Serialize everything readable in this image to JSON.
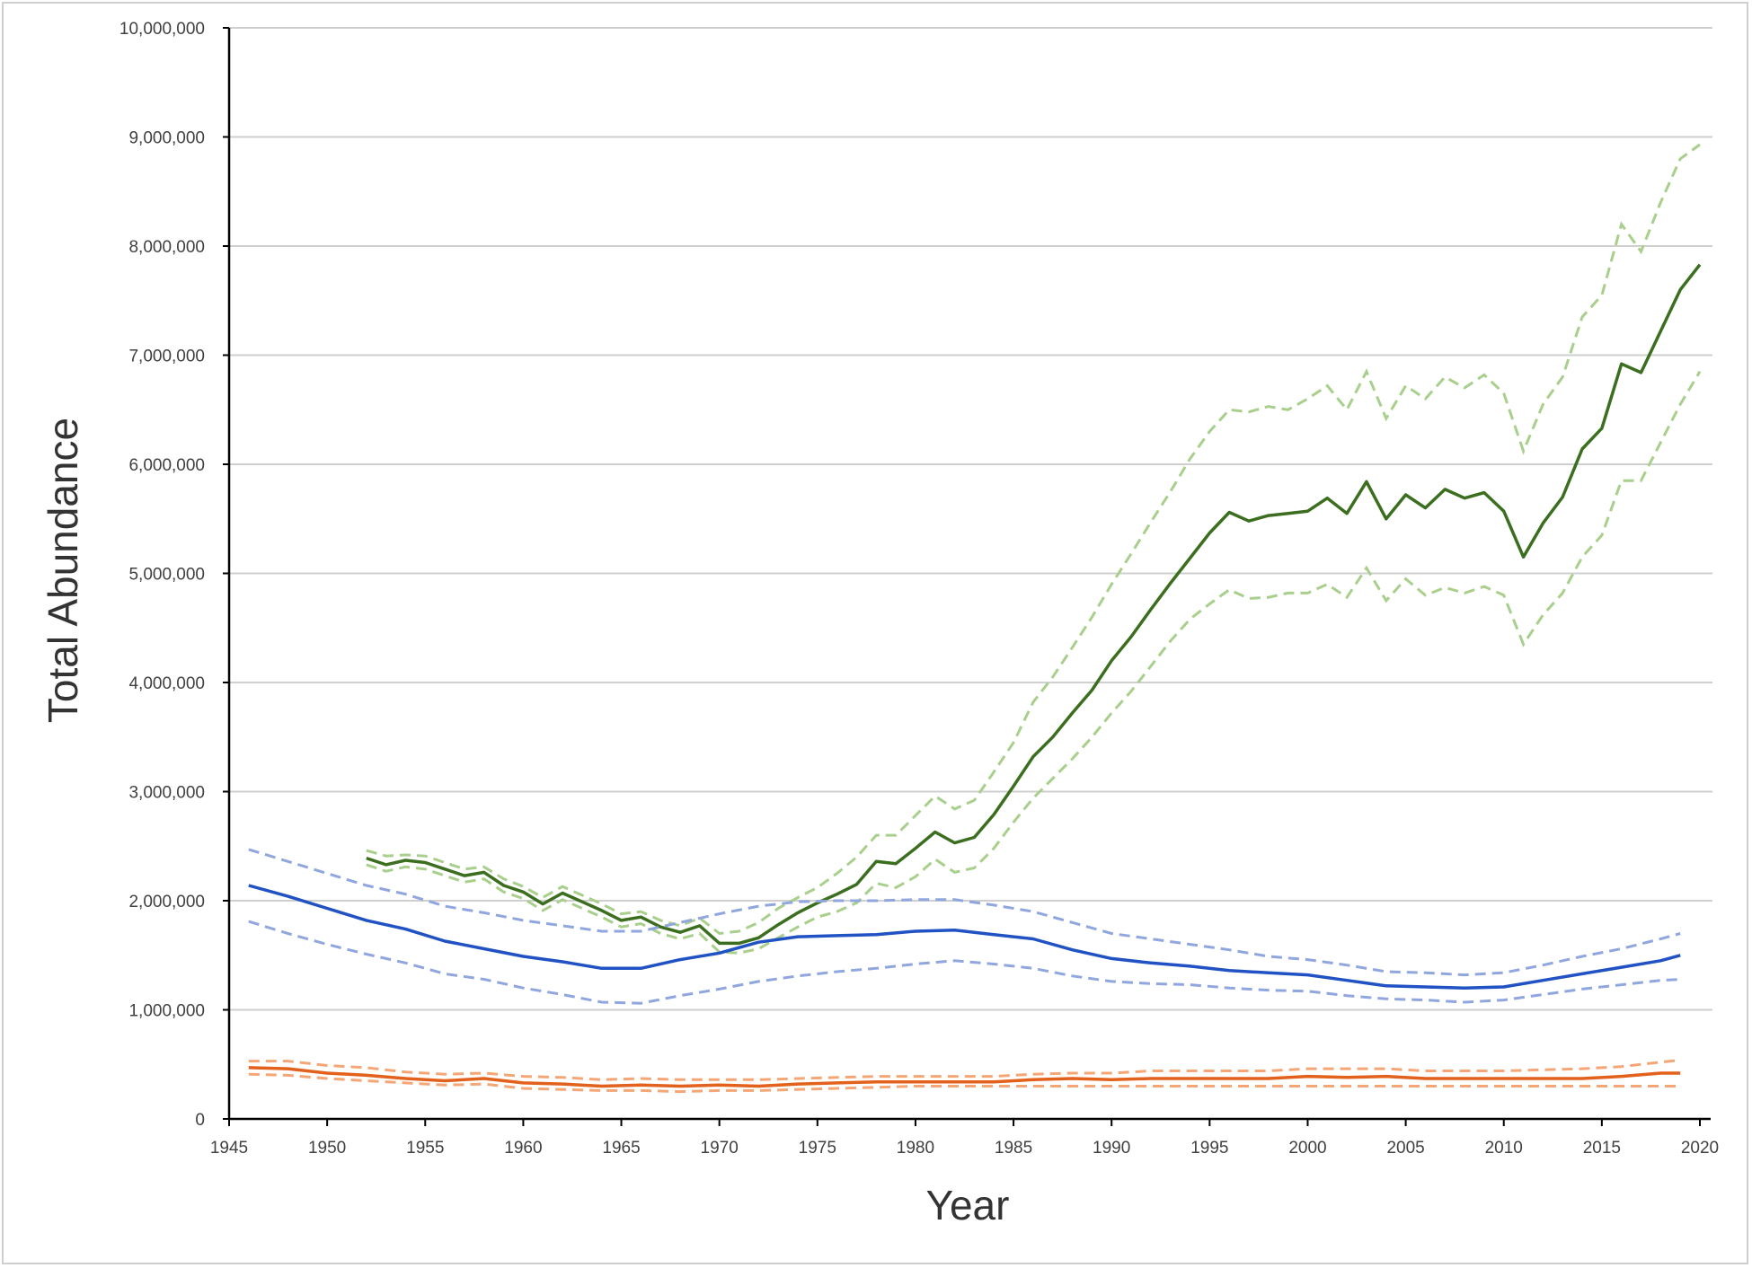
{
  "chart_data": {
    "type": "line",
    "title": "",
    "xlabel": "Year",
    "ylabel": "Total Abundance",
    "xlim": [
      1945,
      2020
    ],
    "ylim": [
      0,
      10000000
    ],
    "x_ticks": [
      "1945",
      "1950",
      "1955",
      "1960",
      "1965",
      "1970",
      "1975",
      "1980",
      "1985",
      "1990",
      "1995",
      "2000",
      "2005",
      "2010",
      "2015",
      "2020"
    ],
    "y_ticks": [
      "0",
      "1,000,000",
      "2,000,000",
      "3,000,000",
      "4,000,000",
      "5,000,000",
      "6,000,000",
      "7,000,000",
      "8,000,000",
      "9,000,000",
      "10,000,000"
    ],
    "grid": true,
    "legend": "none",
    "unit_scale": 1000000,
    "series": [
      {
        "name": "green",
        "color": "#3b6e1f",
        "ci_color": "#a8cf8c",
        "x_start": 1952,
        "x_step": 1,
        "values": [
          2.39,
          2.33,
          2.37,
          2.35,
          2.29,
          2.23,
          2.26,
          2.14,
          2.08,
          1.97,
          2.07,
          1.99,
          1.91,
          1.82,
          1.85,
          1.76,
          1.71,
          1.77,
          1.61,
          1.61,
          1.66,
          1.78,
          1.89,
          1.98,
          2.06,
          2.15,
          2.36,
          2.34,
          2.48,
          2.63,
          2.53,
          2.58,
          2.79,
          3.05,
          3.32,
          3.5,
          3.72,
          3.93,
          4.2,
          4.42,
          4.67,
          4.91,
          5.14,
          5.37,
          5.56,
          5.48,
          5.53,
          5.55,
          5.57,
          5.69,
          5.55,
          5.84,
          5.5,
          5.72,
          5.6,
          5.77,
          5.69,
          5.74,
          5.57,
          5.15,
          5.46,
          5.7,
          6.14,
          6.33,
          6.92,
          6.84,
          7.22,
          7.6,
          7.83
        ],
        "upper": [
          2.46,
          2.41,
          2.42,
          2.41,
          2.35,
          2.29,
          2.31,
          2.2,
          2.13,
          2.03,
          2.13,
          2.05,
          1.97,
          1.88,
          1.9,
          1.82,
          1.77,
          1.84,
          1.7,
          1.72,
          1.8,
          1.93,
          2.03,
          2.12,
          2.25,
          2.4,
          2.6,
          2.6,
          2.78,
          2.96,
          2.84,
          2.92,
          3.18,
          3.45,
          3.82,
          4.05,
          4.32,
          4.6,
          4.9,
          5.18,
          5.47,
          5.75,
          6.05,
          6.3,
          6.5,
          6.48,
          6.53,
          6.5,
          6.6,
          6.72,
          6.5,
          6.85,
          6.42,
          6.72,
          6.6,
          6.8,
          6.7,
          6.82,
          6.65,
          6.12,
          6.55,
          6.8,
          7.35,
          7.55,
          8.2,
          7.95,
          8.4,
          8.8,
          8.93
        ],
        "lower": [
          2.33,
          2.27,
          2.31,
          2.29,
          2.23,
          2.17,
          2.2,
          2.08,
          2.02,
          1.91,
          2.01,
          1.93,
          1.85,
          1.76,
          1.79,
          1.7,
          1.65,
          1.7,
          1.53,
          1.52,
          1.56,
          1.66,
          1.76,
          1.85,
          1.9,
          1.98,
          2.16,
          2.12,
          2.22,
          2.38,
          2.26,
          2.3,
          2.48,
          2.72,
          2.94,
          3.12,
          3.3,
          3.5,
          3.72,
          3.92,
          4.15,
          4.38,
          4.58,
          4.72,
          4.85,
          4.77,
          4.78,
          4.82,
          4.82,
          4.9,
          4.78,
          5.05,
          4.75,
          4.95,
          4.8,
          4.87,
          4.82,
          4.88,
          4.8,
          4.35,
          4.62,
          4.82,
          5.15,
          5.35,
          5.85,
          5.85,
          6.2,
          6.55,
          6.85
        ]
      },
      {
        "name": "blue",
        "color": "#2152c4",
        "ci_color": "#8fa6de",
        "x": [
          1946,
          1948,
          1950,
          1952,
          1954,
          1956,
          1958,
          1960,
          1962,
          1964,
          1966,
          1968,
          1970,
          1972,
          1974,
          1976,
          1978,
          1980,
          1982,
          1984,
          1986,
          1988,
          1990,
          1992,
          1994,
          1996,
          1998,
          2000,
          2002,
          2004,
          2006,
          2008,
          2010,
          2012,
          2014,
          2016,
          2018,
          2019
        ],
        "values": [
          2.14,
          2.04,
          1.93,
          1.82,
          1.74,
          1.63,
          1.56,
          1.49,
          1.44,
          1.38,
          1.38,
          1.46,
          1.52,
          1.62,
          1.67,
          1.68,
          1.69,
          1.72,
          1.73,
          1.69,
          1.65,
          1.55,
          1.47,
          1.43,
          1.4,
          1.36,
          1.34,
          1.32,
          1.27,
          1.22,
          1.21,
          1.2,
          1.21,
          1.27,
          1.33,
          1.39,
          1.45,
          1.5
        ],
        "upper": [
          2.47,
          2.36,
          2.25,
          2.14,
          2.06,
          1.95,
          1.89,
          1.82,
          1.77,
          1.72,
          1.72,
          1.8,
          1.88,
          1.95,
          1.99,
          2.0,
          2.0,
          2.01,
          2.01,
          1.96,
          1.9,
          1.8,
          1.7,
          1.65,
          1.6,
          1.55,
          1.49,
          1.46,
          1.41,
          1.35,
          1.34,
          1.32,
          1.34,
          1.41,
          1.49,
          1.56,
          1.65,
          1.7
        ],
        "lower": [
          1.81,
          1.7,
          1.6,
          1.51,
          1.43,
          1.33,
          1.28,
          1.2,
          1.14,
          1.07,
          1.06,
          1.13,
          1.19,
          1.26,
          1.31,
          1.35,
          1.38,
          1.42,
          1.45,
          1.42,
          1.38,
          1.31,
          1.26,
          1.24,
          1.23,
          1.2,
          1.18,
          1.17,
          1.13,
          1.1,
          1.09,
          1.07,
          1.09,
          1.14,
          1.19,
          1.23,
          1.27,
          1.28
        ]
      },
      {
        "name": "orange",
        "color": "#e2611c",
        "ci_color": "#f4a676",
        "x": [
          1946,
          1948,
          1950,
          1952,
          1954,
          1956,
          1958,
          1960,
          1962,
          1964,
          1966,
          1968,
          1970,
          1972,
          1974,
          1976,
          1978,
          1980,
          1982,
          1984,
          1986,
          1988,
          1990,
          1992,
          1994,
          1996,
          1998,
          2000,
          2002,
          2004,
          2006,
          2008,
          2010,
          2012,
          2014,
          2016,
          2018,
          2019
        ],
        "values": [
          0.47,
          0.46,
          0.42,
          0.4,
          0.37,
          0.35,
          0.37,
          0.33,
          0.32,
          0.3,
          0.31,
          0.3,
          0.31,
          0.3,
          0.32,
          0.33,
          0.34,
          0.34,
          0.34,
          0.34,
          0.36,
          0.37,
          0.36,
          0.37,
          0.37,
          0.37,
          0.37,
          0.39,
          0.38,
          0.39,
          0.37,
          0.37,
          0.37,
          0.37,
          0.37,
          0.39,
          0.42,
          0.42
        ],
        "upper": [
          0.53,
          0.53,
          0.49,
          0.47,
          0.43,
          0.41,
          0.42,
          0.39,
          0.38,
          0.36,
          0.37,
          0.36,
          0.36,
          0.36,
          0.37,
          0.38,
          0.39,
          0.39,
          0.39,
          0.39,
          0.41,
          0.42,
          0.42,
          0.44,
          0.44,
          0.44,
          0.44,
          0.46,
          0.46,
          0.46,
          0.44,
          0.44,
          0.44,
          0.45,
          0.46,
          0.48,
          0.52,
          0.54
        ],
        "lower": [
          0.41,
          0.4,
          0.37,
          0.35,
          0.33,
          0.31,
          0.32,
          0.28,
          0.27,
          0.26,
          0.26,
          0.25,
          0.26,
          0.26,
          0.27,
          0.28,
          0.29,
          0.3,
          0.3,
          0.3,
          0.3,
          0.3,
          0.3,
          0.3,
          0.3,
          0.3,
          0.3,
          0.3,
          0.3,
          0.3,
          0.3,
          0.3,
          0.3,
          0.3,
          0.3,
          0.3,
          0.3,
          0.3
        ]
      }
    ]
  }
}
